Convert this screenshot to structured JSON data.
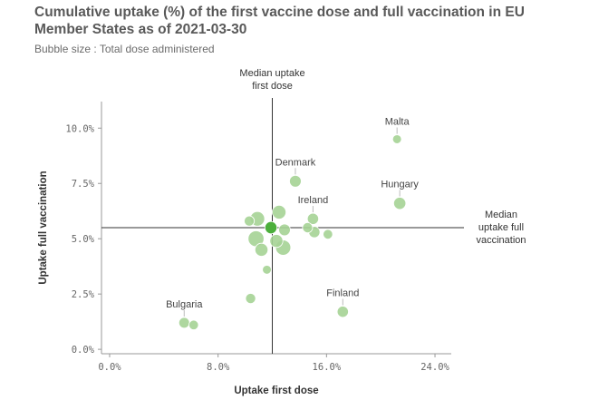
{
  "title": "Cumulative uptake (%) of the first vaccine dose and full vaccination in EU Member States as of 2021-03-30",
  "subtitle": "Bubble size : Total dose administered",
  "chart_data": {
    "type": "scatter",
    "title": "Cumulative uptake (%) of the first vaccine dose and full vaccination in EU Member States as of 2021-03-30",
    "subtitle": "Bubble size : Total dose administered",
    "xlabel": "Uptake first dose",
    "ylabel": "Uptake full vaccination",
    "xlim": [
      -0.6,
      25.2
    ],
    "ylim": [
      -0.2,
      11.2
    ],
    "xticks": [
      0,
      8,
      16,
      24
    ],
    "xtick_labels": [
      "0.0%",
      "8.0%",
      "16.0%",
      "24.0%"
    ],
    "yticks": [
      0,
      2.5,
      5,
      7.5,
      10
    ],
    "ytick_labels": [
      "0.0%",
      "2.5%",
      "5.0%",
      "7.5%",
      "10.0%"
    ],
    "median_x": 12.0,
    "median_y": 5.5,
    "median_x_label": [
      "Median uptake",
      "first dose"
    ],
    "median_y_label": [
      "Median",
      "uptake full",
      "vaccination"
    ],
    "colors": {
      "bubble": "#a5d395",
      "highlight": "#4caf3c",
      "line": "#333333"
    },
    "points": [
      {
        "x": 21.2,
        "y": 9.5,
        "size": 2,
        "label": "Malta"
      },
      {
        "x": 21.4,
        "y": 6.6,
        "size": 5,
        "label": "Hungary"
      },
      {
        "x": 13.7,
        "y": 7.6,
        "size": 4.5,
        "label": "Denmark"
      },
      {
        "x": 15.0,
        "y": 5.9,
        "size": 4,
        "label": "Ireland"
      },
      {
        "x": 17.2,
        "y": 1.7,
        "size": 4,
        "label": "Finland"
      },
      {
        "x": 5.5,
        "y": 1.2,
        "size": 3.5,
        "label": "Bulgaria"
      },
      {
        "x": 6.2,
        "y": 1.1,
        "size": 2.5
      },
      {
        "x": 10.4,
        "y": 2.3,
        "size": 3
      },
      {
        "x": 11.6,
        "y": 3.6,
        "size": 2
      },
      {
        "x": 10.3,
        "y": 5.8,
        "size": 3
      },
      {
        "x": 10.9,
        "y": 5.9,
        "size": 8
      },
      {
        "x": 11.9,
        "y": 5.5,
        "size": 5,
        "highlight": true
      },
      {
        "x": 12.5,
        "y": 6.2,
        "size": 7
      },
      {
        "x": 12.9,
        "y": 5.4,
        "size": 4.5
      },
      {
        "x": 10.8,
        "y": 5.0,
        "size": 10
      },
      {
        "x": 11.2,
        "y": 4.5,
        "size": 6
      },
      {
        "x": 12.3,
        "y": 4.9,
        "size": 6
      },
      {
        "x": 12.8,
        "y": 4.6,
        "size": 9
      },
      {
        "x": 14.6,
        "y": 5.5,
        "size": 3
      },
      {
        "x": 15.1,
        "y": 5.3,
        "size": 4
      },
      {
        "x": 16.1,
        "y": 5.2,
        "size": 2.5
      }
    ]
  }
}
